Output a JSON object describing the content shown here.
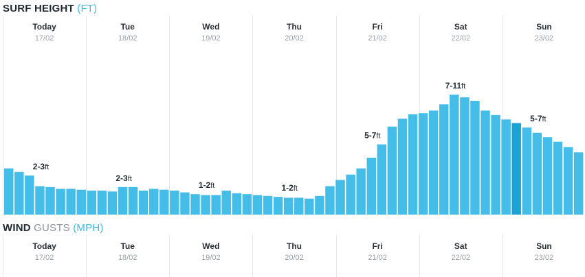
{
  "surf_section": {
    "title_main": "SURF HEIGHT",
    "title_unit": "(FT)"
  },
  "wind_section": {
    "title_main": "WIND",
    "title_sub": "GUSTS",
    "title_unit": "(MPH)"
  },
  "days": [
    {
      "name": "Today",
      "date": "17/02"
    },
    {
      "name": "Tue",
      "date": "18/02"
    },
    {
      "name": "Wed",
      "date": "19/02"
    },
    {
      "name": "Thu",
      "date": "20/02"
    },
    {
      "name": "Fri",
      "date": "21/02"
    },
    {
      "name": "Sat",
      "date": "22/02"
    },
    {
      "name": "Sun",
      "date": "23/02"
    }
  ],
  "colors": {
    "bar": "#45bde9",
    "bar_highlight": "#1aa3d6",
    "divider": "#e6e8ea",
    "accent": "#3bb8e8"
  },
  "chart_data": {
    "type": "bar",
    "unit": "ft",
    "categories": [
      "17/02",
      "17/02",
      "17/02",
      "17/02",
      "17/02",
      "17/02",
      "17/02",
      "17/02",
      "18/02",
      "18/02",
      "18/02",
      "18/02",
      "18/02",
      "18/02",
      "18/02",
      "18/02",
      "19/02",
      "19/02",
      "19/02",
      "19/02",
      "19/02",
      "19/02",
      "19/02",
      "19/02",
      "20/02",
      "20/02",
      "20/02",
      "20/02",
      "20/02",
      "20/02",
      "20/02",
      "20/02",
      "21/02",
      "21/02",
      "21/02",
      "21/02",
      "21/02",
      "21/02",
      "21/02",
      "21/02",
      "22/02",
      "22/02",
      "22/02",
      "22/02",
      "22/02",
      "22/02",
      "22/02",
      "22/02",
      "23/02",
      "23/02",
      "23/02",
      "23/02",
      "23/02",
      "23/02",
      "23/02",
      "23/02"
    ],
    "values": [
      2.6,
      2.4,
      2.2,
      1.6,
      1.55,
      1.45,
      1.45,
      1.4,
      1.35,
      1.35,
      1.3,
      1.55,
      1.55,
      1.35,
      1.45,
      1.4,
      1.35,
      1.25,
      1.15,
      1.1,
      1.1,
      1.35,
      1.2,
      1.15,
      1.1,
      1.05,
      1.0,
      0.95,
      0.95,
      0.9,
      1.05,
      1.6,
      1.95,
      2.25,
      2.6,
      3.2,
      3.95,
      4.95,
      5.4,
      5.65,
      5.7,
      5.85,
      6.2,
      6.75,
      6.6,
      6.4,
      5.85,
      5.6,
      5.35,
      5.15,
      4.9,
      4.6,
      4.35,
      4.1,
      3.8,
      3.5
    ],
    "highlight_index": 49,
    "ymin": 0,
    "ymax": 8.6,
    "annotations": [
      {
        "index": 3,
        "text": "2-3",
        "unit": "ft"
      },
      {
        "index": 11,
        "text": "2-3",
        "unit": "ft"
      },
      {
        "index": 19,
        "text": "1-2",
        "unit": "ft"
      },
      {
        "index": 27,
        "text": "1-2",
        "unit": "ft"
      },
      {
        "index": 35,
        "text": "5-7",
        "unit": "ft"
      },
      {
        "index": 43,
        "text": "7-11",
        "unit": "ft"
      },
      {
        "index": 51,
        "text": "5-7",
        "unit": "ft"
      }
    ],
    "grid": false
  }
}
